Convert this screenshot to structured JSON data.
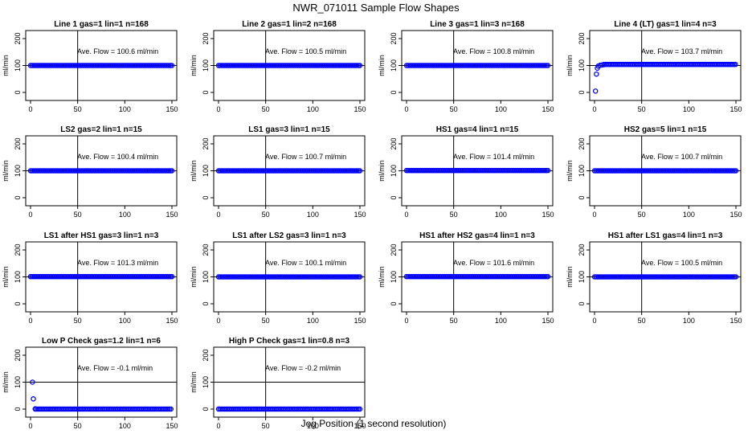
{
  "title": "NWR_071011  Sample Flow Shapes",
  "xlabel": "Jog Position (1 second resolution)",
  "colors": {
    "points": "#0000ff",
    "axes": "#000000",
    "background": "#ffffff"
  },
  "chart_data": [
    {
      "type": "scatter",
      "title": "Line 1 gas=1 lin=1 n=168",
      "ylabel": "ml/min",
      "annotation": "Ave. Flow =  100.6  ml/min",
      "xlim": [
        0,
        150
      ],
      "ylim": [
        0,
        200
      ],
      "xticks": [
        "0",
        "50",
        "100",
        "150"
      ],
      "yticks": [
        "0",
        "100",
        "200"
      ],
      "x": [
        0,
        150
      ],
      "y": [
        100,
        100
      ],
      "markers": "dense-horizontal-run"
    },
    {
      "type": "scatter",
      "title": "Line 2 gas=1 lin=2 n=168",
      "ylabel": "ml/min",
      "annotation": "Ave. Flow =  100.5  ml/min",
      "xlim": [
        0,
        150
      ],
      "ylim": [
        0,
        200
      ],
      "xticks": [
        "0",
        "50",
        "100",
        "150"
      ],
      "yticks": [
        "0",
        "100",
        "200"
      ],
      "x": [
        0,
        150
      ],
      "y": [
        100,
        100
      ],
      "markers": "dense-horizontal-run"
    },
    {
      "type": "scatter",
      "title": "Line 3 gas=1 lin=3 n=168",
      "ylabel": "ml/min",
      "annotation": "Ave. Flow =  100.8  ml/min",
      "xlim": [
        0,
        150
      ],
      "ylim": [
        0,
        200
      ],
      "xticks": [
        "0",
        "50",
        "100",
        "150"
      ],
      "yticks": [
        "0",
        "100",
        "200"
      ],
      "x": [
        0,
        150
      ],
      "y": [
        100,
        100
      ],
      "markers": "dense-horizontal-run"
    },
    {
      "type": "scatter",
      "title": "Line 4 (LT) gas=1 lin=4 n=3",
      "ylabel": "ml/min",
      "annotation": "Ave. Flow =  103.7  ml/min",
      "xlim": [
        0,
        150
      ],
      "ylim": [
        0,
        200
      ],
      "xticks": [
        "0",
        "50",
        "100",
        "150"
      ],
      "yticks": [
        "0",
        "100",
        "200"
      ],
      "x": [
        1,
        2,
        3,
        4,
        6,
        8,
        10,
        150
      ],
      "y": [
        5,
        68,
        90,
        98,
        101,
        102,
        103,
        104
      ],
      "markers": "ramp-then-run"
    },
    {
      "type": "scatter",
      "title": "LS2 gas=2 lin=1 n=15",
      "ylabel": "ml/min",
      "annotation": "Ave. Flow =  100.4  ml/min",
      "xlim": [
        0,
        150
      ],
      "ylim": [
        0,
        200
      ],
      "xticks": [
        "0",
        "50",
        "100",
        "150"
      ],
      "yticks": [
        "0",
        "100",
        "200"
      ],
      "x": [
        0,
        150
      ],
      "y": [
        100,
        100
      ],
      "markers": "dense-horizontal-run"
    },
    {
      "type": "scatter",
      "title": "LS1 gas=3 lin=1 n=15",
      "ylabel": "ml/min",
      "annotation": "Ave. Flow =  100.7  ml/min",
      "xlim": [
        0,
        150
      ],
      "ylim": [
        0,
        200
      ],
      "xticks": [
        "0",
        "50",
        "100",
        "150"
      ],
      "yticks": [
        "0",
        "100",
        "200"
      ],
      "x": [
        0,
        150
      ],
      "y": [
        100,
        100
      ],
      "markers": "dense-horizontal-run"
    },
    {
      "type": "scatter",
      "title": "HS1 gas=4 lin=1 n=15",
      "ylabel": "ml/min",
      "annotation": "Ave. Flow =  101.4  ml/min",
      "xlim": [
        0,
        150
      ],
      "ylim": [
        0,
        200
      ],
      "xticks": [
        "0",
        "50",
        "100",
        "150"
      ],
      "yticks": [
        "0",
        "100",
        "200"
      ],
      "x": [
        0,
        150
      ],
      "y": [
        101,
        101
      ],
      "markers": "dense-horizontal-run"
    },
    {
      "type": "scatter",
      "title": "HS2 gas=5 lin=1 n=15",
      "ylabel": "ml/min",
      "annotation": "Ave. Flow =  100.7  ml/min",
      "xlim": [
        0,
        150
      ],
      "ylim": [
        0,
        200
      ],
      "xticks": [
        "0",
        "50",
        "100",
        "150"
      ],
      "yticks": [
        "0",
        "100",
        "200"
      ],
      "x": [
        0,
        150
      ],
      "y": [
        100,
        100
      ],
      "markers": "dense-horizontal-run"
    },
    {
      "type": "scatter",
      "title": "LS1 after HS1 gas=3 lin=1 n=3",
      "ylabel": "ml/min",
      "annotation": "Ave. Flow =  101.3  ml/min",
      "xlim": [
        0,
        150
      ],
      "ylim": [
        0,
        200
      ],
      "xticks": [
        "0",
        "50",
        "100",
        "150"
      ],
      "yticks": [
        "0",
        "100",
        "200"
      ],
      "x": [
        0,
        150
      ],
      "y": [
        101,
        101
      ],
      "markers": "dense-horizontal-run"
    },
    {
      "type": "scatter",
      "title": "LS1 after LS2 gas=3 lin=1 n=3",
      "ylabel": "ml/min",
      "annotation": "Ave. Flow =  100.1  ml/min",
      "xlim": [
        0,
        150
      ],
      "ylim": [
        0,
        200
      ],
      "xticks": [
        "0",
        "50",
        "100",
        "150"
      ],
      "yticks": [
        "0",
        "100",
        "200"
      ],
      "x": [
        0,
        150
      ],
      "y": [
        100,
        100
      ],
      "markers": "dense-horizontal-run"
    },
    {
      "type": "scatter",
      "title": "HS1 after HS2 gas=4 lin=1 n=3",
      "ylabel": "ml/min",
      "annotation": "Ave. Flow =  101.6  ml/min",
      "xlim": [
        0,
        150
      ],
      "ylim": [
        0,
        200
      ],
      "xticks": [
        "0",
        "50",
        "100",
        "150"
      ],
      "yticks": [
        "0",
        "100",
        "200"
      ],
      "x": [
        0,
        150
      ],
      "y": [
        101,
        101
      ],
      "markers": "dense-horizontal-run"
    },
    {
      "type": "scatter",
      "title": "HS1 after LS1 gas=4 lin=1 n=3",
      "ylabel": "ml/min",
      "annotation": "Ave. Flow =  100.5  ml/min",
      "xlim": [
        0,
        150
      ],
      "ylim": [
        0,
        200
      ],
      "xticks": [
        "0",
        "50",
        "100",
        "150"
      ],
      "yticks": [
        "0",
        "100",
        "200"
      ],
      "x": [
        0,
        150
      ],
      "y": [
        100,
        100
      ],
      "markers": "dense-horizontal-run"
    },
    {
      "type": "scatter",
      "title": "Low P Check gas=1.2 lin=1 n=6",
      "ylabel": "ml/min",
      "annotation": "Ave. Flow =  -0.1  ml/min",
      "xlim": [
        0,
        150
      ],
      "ylim": [
        0,
        200
      ],
      "xticks": [
        "0",
        "50",
        "100",
        "150"
      ],
      "yticks": [
        "0",
        "100",
        "200"
      ],
      "x": [
        2,
        3,
        5,
        150
      ],
      "y": [
        100,
        38,
        1,
        0
      ],
      "markers": "spike-then-run"
    },
    {
      "type": "scatter",
      "title": "High P Check gas=1 lin=0.8 n=3",
      "ylabel": "ml/min",
      "annotation": "Ave. Flow =  -0.2  ml/min",
      "xlim": [
        0,
        150
      ],
      "ylim": [
        0,
        200
      ],
      "xticks": [
        "0",
        "50",
        "100",
        "150"
      ],
      "yticks": [
        "0",
        "100",
        "200"
      ],
      "x": [
        0,
        150
      ],
      "y": [
        0,
        0
      ],
      "markers": "dense-horizontal-run"
    }
  ]
}
